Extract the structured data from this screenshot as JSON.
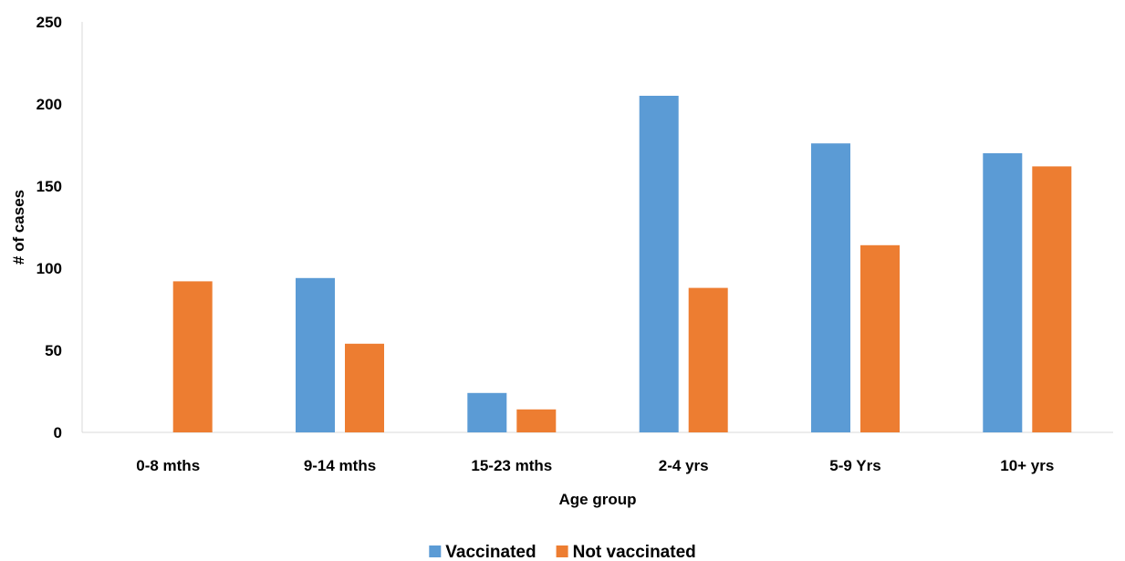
{
  "chart_data": {
    "type": "bar",
    "categories": [
      "0-8 mths",
      "9-14 mths",
      "15-23 mths",
      "2-4 yrs",
      "5-9 Yrs",
      "10+ yrs"
    ],
    "series": [
      {
        "name": "Vaccinated",
        "values": [
          0,
          94,
          24,
          205,
          176,
          170
        ],
        "color": "#5b9bd5"
      },
      {
        "name": "Not vaccinated",
        "values": [
          92,
          54,
          14,
          88,
          114,
          162
        ],
        "color": "#ed7d31"
      }
    ],
    "xlabel": "Age group",
    "ylabel": "# of cases",
    "ylim": [
      0,
      250
    ],
    "yticks": [
      0,
      50,
      100,
      150,
      200,
      250
    ],
    "grid": false,
    "legend": "bottom"
  }
}
